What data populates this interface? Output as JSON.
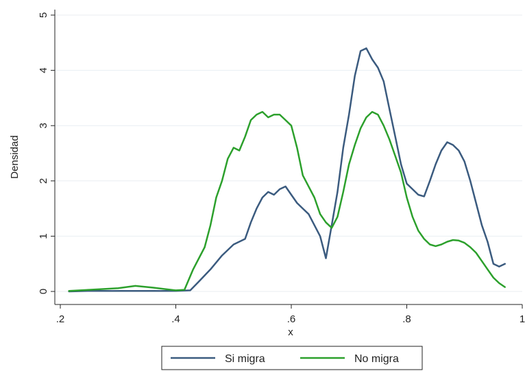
{
  "chart_data": {
    "type": "line",
    "title": "",
    "xlabel": "x",
    "ylabel": "Densidad",
    "xlim": [
      0.2,
      1.0
    ],
    "ylim": [
      0,
      5
    ],
    "x_ticks": [
      ".2",
      ".4",
      ".6",
      ".8",
      "1"
    ],
    "x_tick_values": [
      0.2,
      0.4,
      0.6,
      0.8,
      1.0
    ],
    "y_ticks": [
      "0",
      "1",
      "2",
      "3",
      "4",
      "5"
    ],
    "y_tick_values": [
      0,
      1,
      2,
      3,
      4,
      5
    ],
    "grid": true,
    "legend_position": "bottom",
    "series": [
      {
        "name": "Si migra",
        "color": "#3b5b7f",
        "x": [
          0.215,
          0.25,
          0.3,
          0.35,
          0.4,
          0.425,
          0.44,
          0.46,
          0.48,
          0.5,
          0.52,
          0.53,
          0.54,
          0.55,
          0.56,
          0.57,
          0.58,
          0.59,
          0.6,
          0.61,
          0.62,
          0.63,
          0.64,
          0.65,
          0.66,
          0.67,
          0.68,
          0.69,
          0.7,
          0.71,
          0.72,
          0.73,
          0.74,
          0.75,
          0.76,
          0.77,
          0.78,
          0.79,
          0.8,
          0.81,
          0.82,
          0.83,
          0.84,
          0.85,
          0.86,
          0.87,
          0.88,
          0.89,
          0.9,
          0.91,
          0.92,
          0.93,
          0.94,
          0.95,
          0.96,
          0.97
        ],
        "y": [
          0.0,
          0.01,
          0.01,
          0.01,
          0.01,
          0.02,
          0.18,
          0.4,
          0.65,
          0.85,
          0.95,
          1.25,
          1.5,
          1.7,
          1.8,
          1.75,
          1.85,
          1.9,
          1.75,
          1.6,
          1.5,
          1.4,
          1.2,
          1.0,
          0.6,
          1.2,
          1.8,
          2.6,
          3.2,
          3.9,
          4.35,
          4.4,
          4.2,
          4.05,
          3.8,
          3.3,
          2.8,
          2.3,
          1.95,
          1.85,
          1.75,
          1.72,
          2.0,
          2.3,
          2.55,
          2.7,
          2.65,
          2.55,
          2.35,
          2.0,
          1.6,
          1.2,
          0.9,
          0.5,
          0.45,
          0.5
        ]
      },
      {
        "name": "No migra",
        "color": "#2ca02c",
        "x": [
          0.215,
          0.25,
          0.3,
          0.33,
          0.36,
          0.4,
          0.415,
          0.43,
          0.45,
          0.46,
          0.47,
          0.48,
          0.49,
          0.5,
          0.51,
          0.52,
          0.53,
          0.54,
          0.55,
          0.56,
          0.57,
          0.58,
          0.59,
          0.6,
          0.61,
          0.62,
          0.63,
          0.64,
          0.65,
          0.66,
          0.67,
          0.68,
          0.69,
          0.7,
          0.71,
          0.72,
          0.73,
          0.74,
          0.75,
          0.76,
          0.77,
          0.78,
          0.79,
          0.8,
          0.81,
          0.82,
          0.83,
          0.84,
          0.85,
          0.86,
          0.87,
          0.88,
          0.89,
          0.9,
          0.91,
          0.92,
          0.93,
          0.94,
          0.95,
          0.96,
          0.97
        ],
        "y": [
          0.01,
          0.03,
          0.06,
          0.1,
          0.07,
          0.02,
          0.03,
          0.4,
          0.8,
          1.2,
          1.7,
          2.0,
          2.4,
          2.6,
          2.55,
          2.8,
          3.1,
          3.2,
          3.25,
          3.15,
          3.2,
          3.2,
          3.1,
          3.0,
          2.6,
          2.1,
          1.9,
          1.7,
          1.4,
          1.25,
          1.15,
          1.35,
          1.8,
          2.3,
          2.65,
          2.95,
          3.15,
          3.25,
          3.2,
          3.0,
          2.75,
          2.45,
          2.15,
          1.7,
          1.35,
          1.1,
          0.95,
          0.85,
          0.82,
          0.85,
          0.9,
          0.93,
          0.92,
          0.88,
          0.8,
          0.7,
          0.55,
          0.4,
          0.25,
          0.15,
          0.08
        ]
      }
    ]
  }
}
